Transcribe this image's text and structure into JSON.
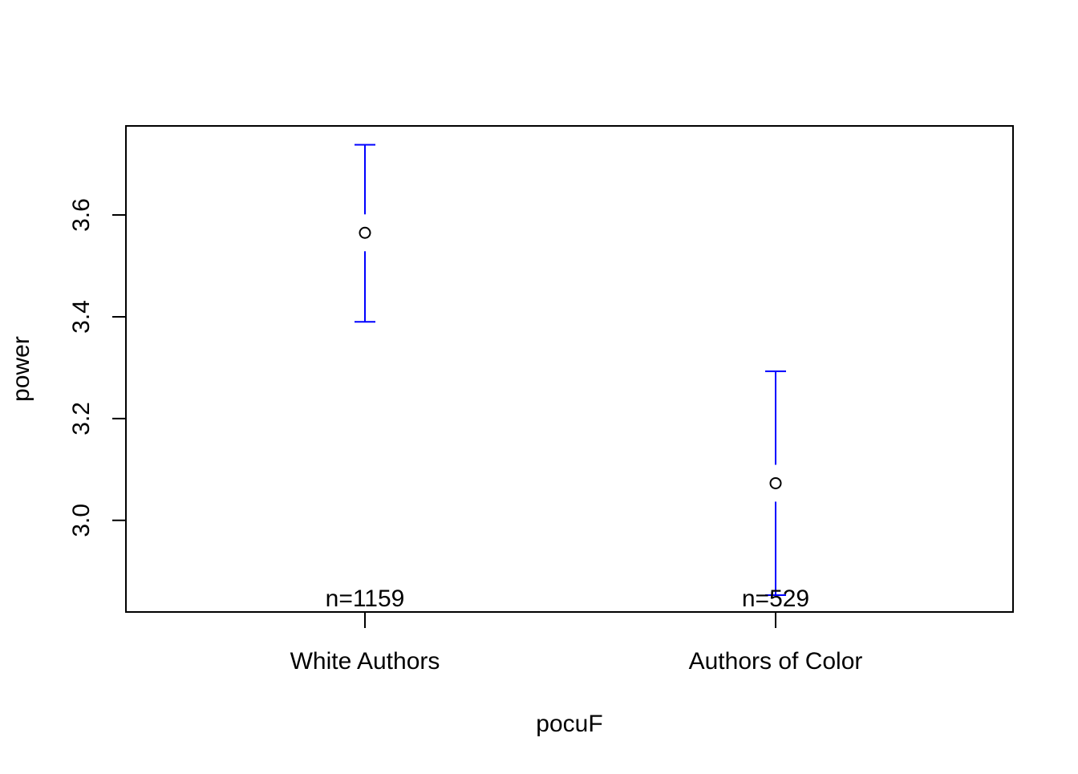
{
  "chart_data": {
    "type": "errorbar",
    "title": "",
    "xlabel": "pocuF",
    "ylabel": "power",
    "categories": [
      "White Authors",
      "Authors of Color"
    ],
    "series": [
      {
        "means": [
          3.565,
          3.073
        ],
        "lower": [
          3.39,
          2.853
        ],
        "upper": [
          3.738,
          3.293
        ],
        "counts": [
          "n=1159",
          "n=529"
        ]
      }
    ],
    "ylim": [
      2.82,
      3.775
    ],
    "yticks": [
      3.0,
      3.2,
      3.4,
      3.6
    ],
    "ytick_labels": [
      "3.0",
      "3.2",
      "3.4",
      "3.6"
    ],
    "grid": false,
    "legend": "none",
    "colors": {
      "errorbar": "#0000ff",
      "point": "#000000",
      "axis": "#000000"
    }
  }
}
